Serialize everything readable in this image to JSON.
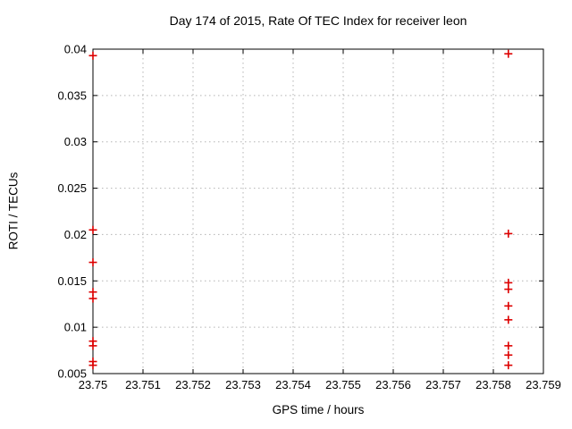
{
  "chart_data": {
    "type": "scatter",
    "title": "Day 174 of 2015, Rate Of TEC Index for receiver leon",
    "xlabel": "GPS time / hours",
    "ylabel": "ROTI / TECUs",
    "xlim": [
      23.75,
      23.759
    ],
    "ylim": [
      0.005,
      0.04
    ],
    "x_ticks": [
      23.75,
      23.751,
      23.752,
      23.753,
      23.754,
      23.755,
      23.756,
      23.757,
      23.758,
      23.759
    ],
    "x_tick_labels": [
      "23.75",
      "23.751",
      "23.752",
      "23.753",
      "23.754",
      "23.755",
      "23.756",
      "23.757",
      "23.758",
      "23.759"
    ],
    "y_ticks": [
      0.005,
      0.01,
      0.015,
      0.02,
      0.025,
      0.03,
      0.035,
      0.04
    ],
    "y_tick_labels": [
      "0.005",
      "0.01",
      "0.015",
      "0.02",
      "0.025",
      "0.03",
      "0.035",
      "0.04"
    ],
    "grid": true,
    "grid_color": "#b3b3b3",
    "border_color": "#000000",
    "legend": "none",
    "series": [
      {
        "name": "ROTI",
        "marker": "plus",
        "color": "#dd0000",
        "points": [
          {
            "x": 23.75,
            "y": 0.0393
          },
          {
            "x": 23.75,
            "y": 0.0205
          },
          {
            "x": 23.75,
            "y": 0.017
          },
          {
            "x": 23.75,
            "y": 0.0138
          },
          {
            "x": 23.75,
            "y": 0.0131
          },
          {
            "x": 23.75,
            "y": 0.0085
          },
          {
            "x": 23.75,
            "y": 0.008
          },
          {
            "x": 23.75,
            "y": 0.0063
          },
          {
            "x": 23.75,
            "y": 0.0059
          },
          {
            "x": 23.7583,
            "y": 0.0395
          },
          {
            "x": 23.7583,
            "y": 0.0201
          },
          {
            "x": 23.7583,
            "y": 0.0148
          },
          {
            "x": 23.7583,
            "y": 0.0141
          },
          {
            "x": 23.7583,
            "y": 0.0123
          },
          {
            "x": 23.7583,
            "y": 0.0108
          },
          {
            "x": 23.7583,
            "y": 0.008
          },
          {
            "x": 23.7583,
            "y": 0.007
          },
          {
            "x": 23.7583,
            "y": 0.0059
          }
        ]
      }
    ]
  }
}
